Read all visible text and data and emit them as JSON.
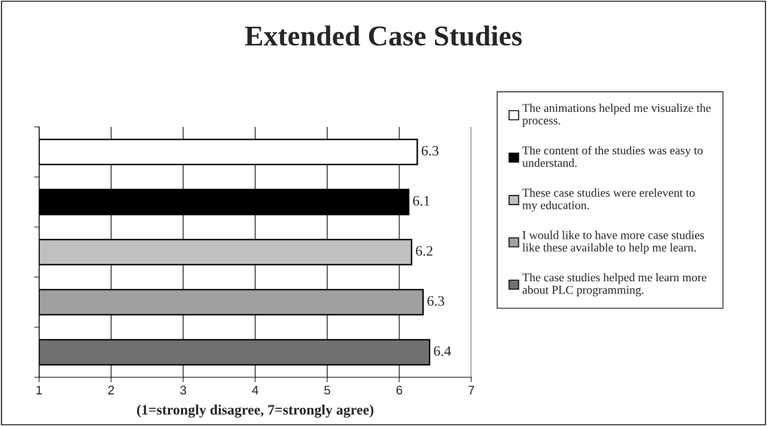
{
  "chart_data": {
    "type": "bar",
    "orientation": "horizontal",
    "title": "Extended Case Studies",
    "xlabel": "(1=strongly disagree, 7=strongly agree)",
    "categories": [
      null
    ],
    "series": [
      {
        "name": "The animations helped me visualize the process.",
        "color": "#ffffff",
        "values": [
          6.25
        ],
        "value_labels": [
          "6.3"
        ]
      },
      {
        "name": "The content of the studies was easy to understand.",
        "color": "#000000",
        "values": [
          6.13
        ],
        "value_labels": [
          "6.1"
        ]
      },
      {
        "name": "These case studies were erelevent to my education.",
        "color": "#c0c0c0",
        "values": [
          6.17
        ],
        "value_labels": [
          "6.2"
        ]
      },
      {
        "name": "I would like to have more case studies like these available to help me learn.",
        "color": "#a0a0a0",
        "values": [
          6.33
        ],
        "value_labels": [
          "6.3"
        ]
      },
      {
        "name": "The case studies helped me learn more about PLC programming.",
        "color": "#707070",
        "values": [
          6.42
        ],
        "value_labels": [
          "6.4"
        ]
      }
    ],
    "xlim": [
      1,
      7
    ],
    "xticks": [
      1,
      2,
      3,
      4,
      5,
      6,
      7
    ],
    "grid": "x",
    "legend": "right",
    "tick_labels": "x"
  }
}
